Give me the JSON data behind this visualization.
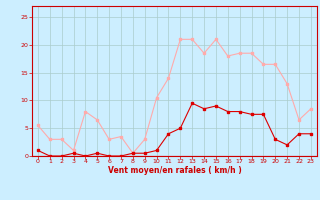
{
  "hours": [
    0,
    1,
    2,
    3,
    4,
    5,
    6,
    7,
    8,
    9,
    10,
    11,
    12,
    13,
    14,
    15,
    16,
    17,
    18,
    19,
    20,
    21,
    22,
    23
  ],
  "wind_avg": [
    1,
    0,
    0,
    0.5,
    0,
    0.5,
    0,
    0,
    0.5,
    0.5,
    1,
    4,
    5,
    9.5,
    8.5,
    9,
    8,
    8,
    7.5,
    7.5,
    3,
    2,
    4,
    4
  ],
  "wind_gust": [
    5.5,
    3,
    3,
    1,
    8,
    6.5,
    3,
    3.5,
    0.5,
    3,
    10.5,
    14,
    21,
    21,
    18.5,
    21,
    18,
    18.5,
    18.5,
    16.5,
    16.5,
    13,
    6.5,
    8.5
  ],
  "avg_color": "#dd0000",
  "gust_color": "#ffaaaa",
  "bg_color": "#cceeff",
  "grid_color": "#aacccc",
  "axis_color": "#cc0000",
  "xlabel": "Vent moyen/en rafales ( km/h )",
  "ylim": [
    0,
    27
  ],
  "yticks": [
    0,
    5,
    10,
    15,
    20,
    25
  ],
  "xlim": [
    -0.5,
    23.5
  ],
  "xticks": [
    0,
    1,
    2,
    3,
    4,
    5,
    6,
    7,
    8,
    9,
    10,
    11,
    12,
    13,
    14,
    15,
    16,
    17,
    18,
    19,
    20,
    21,
    22,
    23
  ]
}
